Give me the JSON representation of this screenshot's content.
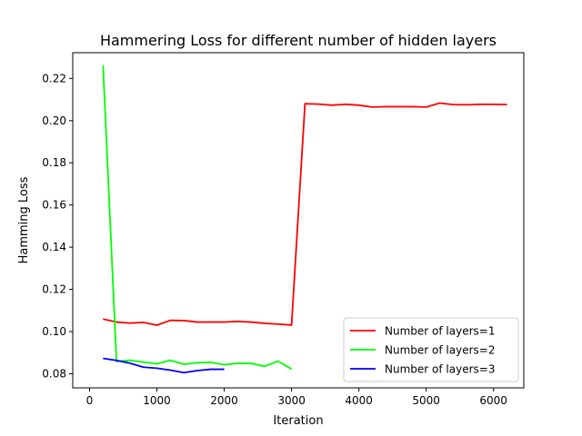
{
  "chart_data": {
    "type": "line",
    "title": "Hammering Loss for different number of hidden layers",
    "xlabel": "Iteration",
    "ylabel": "Hamming Loss",
    "xlim": [
      -250,
      6450
    ],
    "ylim": [
      0.0733,
      0.2322
    ],
    "xticks": [
      0,
      1000,
      2000,
      3000,
      4000,
      5000,
      6000
    ],
    "xtick_labels": [
      "0",
      "1000",
      "2000",
      "3000",
      "4000",
      "5000",
      "6000"
    ],
    "yticks": [
      0.08,
      0.1,
      0.12,
      0.14,
      0.16,
      0.18,
      0.2,
      0.22
    ],
    "ytick_labels": [
      "0.08",
      "0.10",
      "0.12",
      "0.14",
      "0.16",
      "0.18",
      "0.20",
      "0.22"
    ],
    "grid": false,
    "legend_position": "lower-right",
    "series": [
      {
        "name": "Number of layers=1",
        "color": "#ff0000",
        "x": [
          200,
          400,
          600,
          800,
          1000,
          1200,
          1400,
          1600,
          1800,
          2000,
          2200,
          2400,
          2600,
          2800,
          3000,
          3200,
          3400,
          3600,
          3800,
          4000,
          4200,
          4400,
          4600,
          4800,
          5000,
          5200,
          5400,
          5600,
          5800,
          6000,
          6200
        ],
        "values": [
          0.1059,
          0.1045,
          0.104,
          0.1043,
          0.103,
          0.1053,
          0.1052,
          0.1045,
          0.1045,
          0.1045,
          0.1048,
          0.1045,
          0.1039,
          0.1035,
          0.1031,
          0.208,
          0.2078,
          0.2073,
          0.2077,
          0.2073,
          0.2064,
          0.2066,
          0.2066,
          0.2066,
          0.2064,
          0.2083,
          0.2076,
          0.2075,
          0.2077,
          0.2077,
          0.2076
        ]
      },
      {
        "name": "Number of layers=2",
        "color": "#00ff00",
        "x": [
          200,
          400,
          600,
          800,
          1000,
          1200,
          1400,
          1600,
          1800,
          2000,
          2200,
          2400,
          2600,
          2800,
          3000
        ],
        "values": [
          0.2262,
          0.0858,
          0.0864,
          0.0855,
          0.0847,
          0.0864,
          0.0845,
          0.0852,
          0.0854,
          0.0843,
          0.0849,
          0.0849,
          0.0835,
          0.086,
          0.0822
        ]
      },
      {
        "name": "Number of layers=3",
        "color": "#0000ff",
        "x": [
          200,
          400,
          600,
          800,
          1000,
          1200,
          1400,
          1600,
          1800,
          2000
        ],
        "values": [
          0.0873,
          0.0863,
          0.085,
          0.0831,
          0.0826,
          0.0817,
          0.0805,
          0.0815,
          0.0821,
          0.0821
        ]
      }
    ]
  }
}
